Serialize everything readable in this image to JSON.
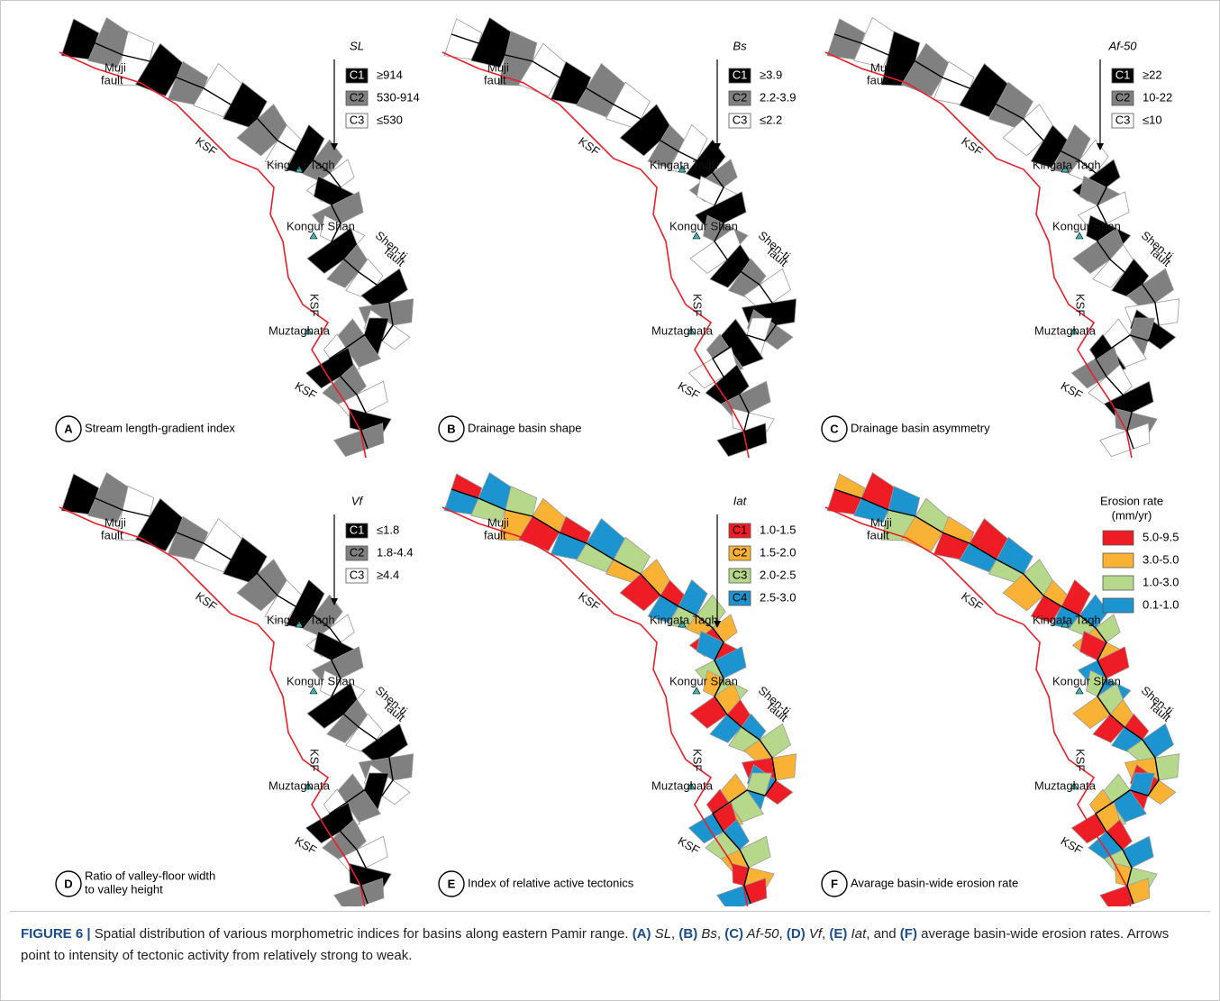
{
  "map_labels": [
    "Muji",
    "fault",
    "KSF",
    "Kingata Tagh",
    "Kongur Shan",
    "Shen-ti",
    "Muztaghata"
  ],
  "panels": [
    {
      "letter": "A",
      "title": [
        "Stream length-gradient index"
      ],
      "legend": {
        "title": [
          "SL"
        ],
        "arrow": true,
        "items": [
          {
            "code": "C1",
            "range": "≥914",
            "color": "#000000"
          },
          {
            "code": "C2",
            "range": "530-914",
            "color": "#808080"
          },
          {
            "code": "C3",
            "range": "≤530",
            "color": "#ffffff"
          }
        ]
      }
    },
    {
      "letter": "B",
      "title": [
        "Drainage basin shape"
      ],
      "legend": {
        "title": [
          "Bs"
        ],
        "arrow": true,
        "items": [
          {
            "code": "C1",
            "range": "≥3.9",
            "color": "#000000"
          },
          {
            "code": "C2",
            "range": "2.2-3.9",
            "color": "#808080"
          },
          {
            "code": "C3",
            "range": "≤2.2",
            "color": "#ffffff"
          }
        ]
      }
    },
    {
      "letter": "C",
      "title": [
        "Drainage basin asymmetry"
      ],
      "legend": {
        "title": [
          "Af-50"
        ],
        "arrow": true,
        "items": [
          {
            "code": "C1",
            "range": "≥22",
            "color": "#000000"
          },
          {
            "code": "C2",
            "range": "10-22",
            "color": "#808080"
          },
          {
            "code": "C3",
            "range": "≤10",
            "color": "#ffffff"
          }
        ]
      }
    },
    {
      "letter": "D",
      "title": [
        "Ratio of valley-floor width",
        "to valley height"
      ],
      "legend": {
        "title": [
          "Vf"
        ],
        "arrow": true,
        "items": [
          {
            "code": "C1",
            "range": "≤1.8",
            "color": "#000000"
          },
          {
            "code": "C2",
            "range": "1.8-4.4",
            "color": "#808080"
          },
          {
            "code": "C3",
            "range": "≥4.4",
            "color": "#ffffff"
          }
        ]
      }
    },
    {
      "letter": "E",
      "title": [
        "Index of relative active tectonics"
      ],
      "legend": {
        "title": [
          "Iat"
        ],
        "arrow": true,
        "items": [
          {
            "code": "C1",
            "range": "1.0-1.5",
            "color": "#ee1c25"
          },
          {
            "code": "C2",
            "range": "1.5-2.0",
            "color": "#f9b233"
          },
          {
            "code": "C3",
            "range": "2.0-2.5",
            "color": "#b5d88a"
          },
          {
            "code": "C4",
            "range": "2.5-3.0",
            "color": "#1b94cf"
          }
        ]
      }
    },
    {
      "letter": "F",
      "title": [
        "Avarage basin-wide erosion rate"
      ],
      "legend": {
        "title": [
          "Erosion rate",
          "(mm/yr)"
        ],
        "arrow": false,
        "items": [
          {
            "range": "5.0-9.5",
            "color": "#ee1c25"
          },
          {
            "range": "3.0-5.0",
            "color": "#f9b233"
          },
          {
            "range": "1.0-3.0",
            "color": "#b5d88a"
          },
          {
            "range": "0.1-1.0",
            "color": "#1b94cf"
          }
        ]
      }
    }
  ],
  "caption": [
    {
      "text": "FIGURE 6 | ",
      "style": "bold"
    },
    {
      "text": "Spatial distribution of various morphometric indices for basins along eastern Pamir range. ",
      "style": "normal"
    },
    {
      "text": "(A)",
      "style": "bold"
    },
    {
      "text": " SL",
      "style": "italic"
    },
    {
      "text": ", ",
      "style": "normal"
    },
    {
      "text": "(B)",
      "style": "bold"
    },
    {
      "text": " Bs",
      "style": "italic"
    },
    {
      "text": ", ",
      "style": "normal"
    },
    {
      "text": "(C)",
      "style": "bold"
    },
    {
      "text": " Af-50",
      "style": "italic"
    },
    {
      "text": ", ",
      "style": "normal"
    },
    {
      "text": "(D)",
      "style": "bold"
    },
    {
      "text": " Vf",
      "style": "italic"
    },
    {
      "text": ", ",
      "style": "normal"
    },
    {
      "text": "(E)",
      "style": "bold"
    },
    {
      "text": " Iat",
      "style": "italic"
    },
    {
      "text": ", and ",
      "style": "normal"
    },
    {
      "text": "(F)",
      "style": "bold"
    },
    {
      "text": " average basin-wide erosion rates. Arrows point to intensity of tectonic activity from relatively strong to weak.",
      "style": "normal"
    }
  ]
}
